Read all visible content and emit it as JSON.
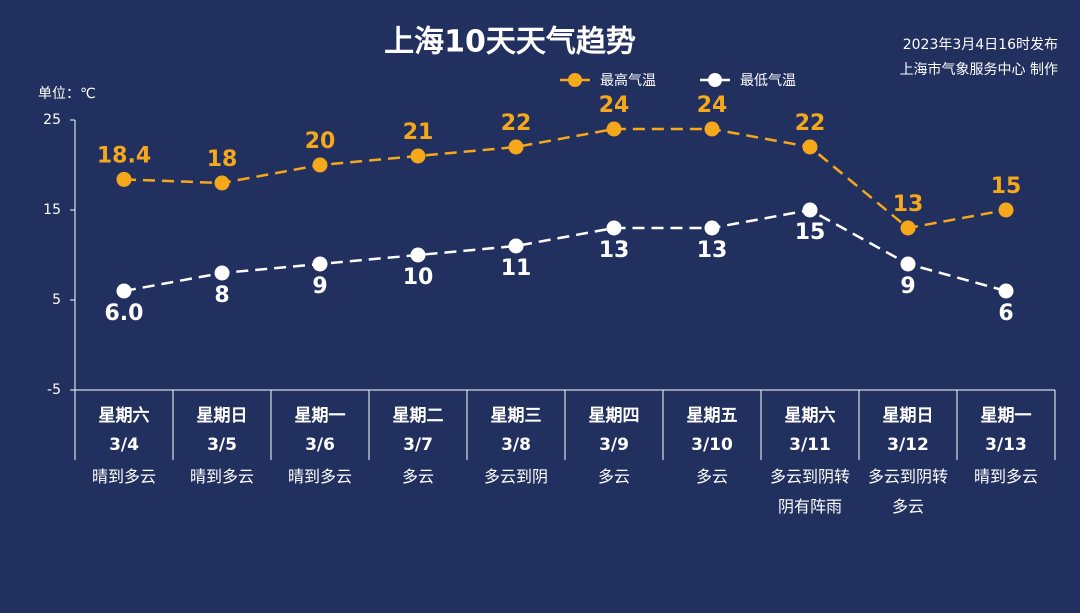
{
  "chart_data": {
    "type": "line",
    "title": "上海10天天气趋势",
    "subtitle": [
      "2023年3月4日16时发布",
      "上海市气象服务中心 制作"
    ],
    "y_label": "单位：℃",
    "categories": [
      "3/4",
      "3/5",
      "3/6",
      "3/7",
      "3/8",
      "3/9",
      "3/10",
      "3/11",
      "3/12",
      "3/13"
    ],
    "weekdays": [
      "星期六",
      "星期日",
      "星期一",
      "星期二",
      "星期三",
      "星期四",
      "星期五",
      "星期六",
      "星期日",
      "星期一"
    ],
    "weather": [
      "晴到多云",
      "晴到多云",
      "晴到多云",
      "多云",
      "多云到阴",
      "多云",
      "多云",
      "多云到阴转阴有阵雨",
      "多云到阴转多云",
      "晴到多云"
    ],
    "series": [
      {
        "name": "最高气温",
        "color": "#f5a81c",
        "values": [
          18.4,
          18,
          20,
          21,
          22,
          24,
          24,
          22,
          13,
          15
        ]
      },
      {
        "name": "最低气温",
        "color": "#ffffff",
        "values": [
          6,
          8,
          9,
          10,
          11,
          13,
          13,
          15,
          9,
          6
        ],
        "value_labels": [
          "6.0",
          "8",
          "9",
          "10",
          "11",
          "13",
          "13",
          "15",
          "9",
          "6"
        ]
      }
    ],
    "ylim": [
      -5,
      25
    ],
    "yticks": [
      -5,
      5,
      15,
      25
    ]
  }
}
